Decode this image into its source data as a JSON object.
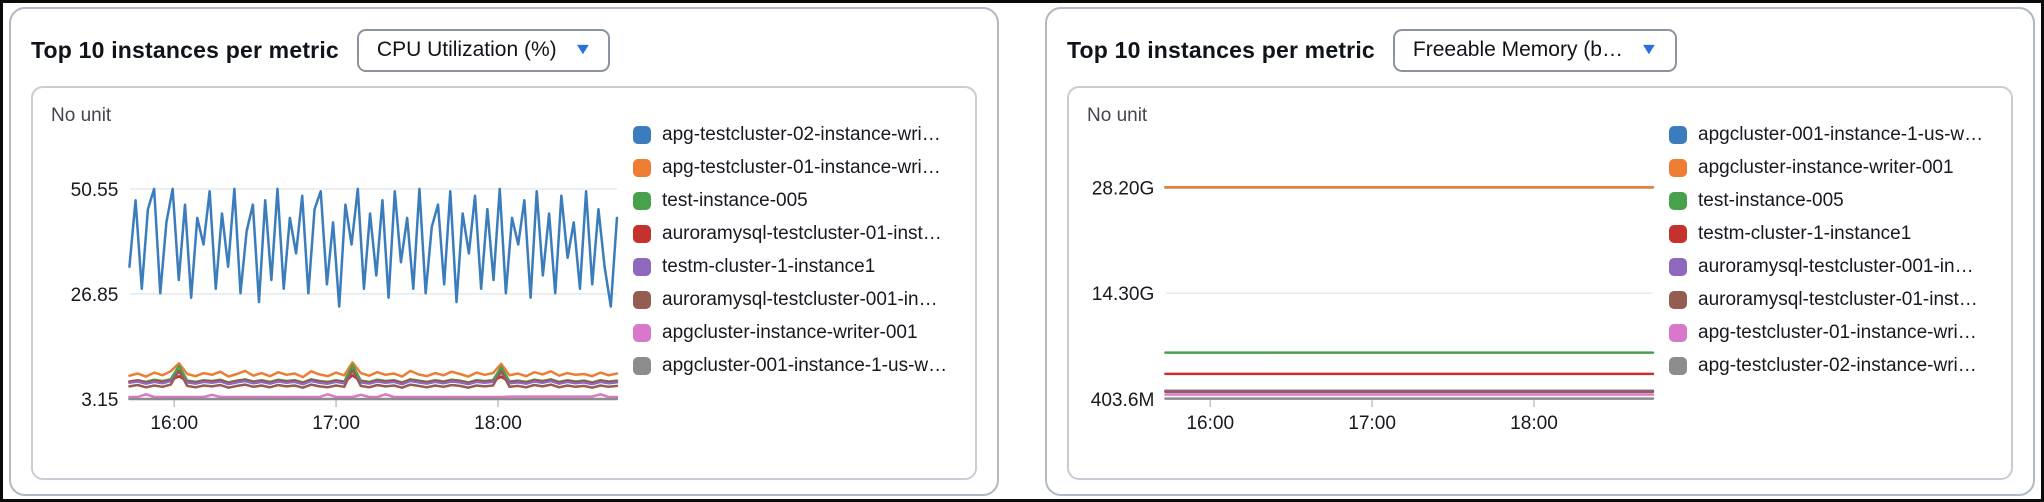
{
  "panels": [
    {
      "title": "Top 10 instances per metric",
      "metric_selector": {
        "value": "CPU Utilization (%)",
        "caret": "▼"
      },
      "chart": {
        "unit_label": "No unit"
      }
    },
    {
      "title": "Top 10 instances per metric",
      "metric_selector": {
        "value": "Freeable Memory (b…",
        "caret": "▼"
      },
      "chart": {
        "unit_label": "No unit"
      }
    }
  ],
  "chart_data": [
    {
      "type": "line",
      "title": "Top 10 instances per metric — CPU Utilization (%)",
      "unit": "No unit",
      "legend_position": "right",
      "grid": "horizontal",
      "ylim": [
        3.15,
        60
      ],
      "gridlines": [
        {
          "value": 50.55,
          "label": "50.55"
        },
        {
          "value": 26.85,
          "label": "26.85"
        },
        {
          "value": 3.15,
          "label": "3.15"
        }
      ],
      "xticks": [
        {
          "f": 0.092,
          "label": "16:00"
        },
        {
          "f": 0.424,
          "label": "17:00"
        },
        {
          "f": 0.756,
          "label": "18:00"
        }
      ],
      "series": [
        {
          "name": "apg-testcluster-02-instance-wri…",
          "color": "#3b7dbc",
          "values": [
            33,
            48,
            28,
            46,
            50.55,
            27,
            43,
            50.55,
            30,
            47,
            26,
            44,
            38,
            50,
            28,
            45,
            33,
            50.55,
            27,
            41,
            47,
            25,
            48,
            30,
            50.55,
            28,
            44,
            36,
            49,
            27,
            46,
            50,
            29,
            43,
            24,
            47,
            38,
            50.55,
            28,
            45,
            31,
            48,
            26,
            50,
            34,
            44,
            28,
            50.55,
            27,
            42,
            47,
            29,
            50,
            25,
            45,
            36,
            49,
            28,
            46,
            30,
            50.55,
            27,
            44,
            38,
            48,
            26,
            50,
            31,
            45,
            27,
            49,
            35,
            43,
            28,
            50,
            29,
            46,
            33,
            24,
            44
          ]
        },
        {
          "name": "apg-testcluster-01-instance-wri…",
          "color": "#ec7d33",
          "values": [
            8.4,
            8.9,
            8.2,
            9.1,
            8.5,
            9.4,
            11.2,
            8.8,
            8.3,
            9.0,
            8.6,
            9.3,
            8.2,
            8.8,
            9.5,
            8.4,
            9.0,
            8.3,
            9.2,
            8.6,
            8.9,
            8.1,
            9.4,
            8.7,
            8.3,
            9.1,
            8.5,
            11.4,
            9.0,
            8.4,
            9.2,
            8.6,
            8.9,
            8.2,
            9.5,
            8.7,
            8.3,
            9.0,
            8.5,
            9.3,
            8.8,
            8.2,
            9.1,
            8.6,
            9.0,
            11.1,
            8.5,
            8.9,
            8.3,
            9.2,
            8.7,
            9.4,
            8.4,
            9.0,
            8.6,
            8.8,
            8.3,
            9.1,
            8.5,
            8.9
          ]
        },
        {
          "name": "test-instance-005",
          "color": "#48a24c",
          "values": [
            7.1,
            7.4,
            7.0,
            7.5,
            7.2,
            7.6,
            10.6,
            7.3,
            7.0,
            7.4,
            7.2,
            7.5,
            6.9,
            7.3,
            7.6,
            7.1,
            7.4,
            7.0,
            7.5,
            7.2,
            7.4,
            6.9,
            7.6,
            7.2,
            7.0,
            7.4,
            7.1,
            10.8,
            7.3,
            7.0,
            7.5,
            7.2,
            7.4,
            6.9,
            7.6,
            7.3,
            7.0,
            7.4,
            7.1,
            7.5,
            7.3,
            6.9,
            7.4,
            7.2,
            7.4,
            10.4,
            7.1,
            7.3,
            7.0,
            7.5,
            7.2,
            7.6,
            7.0,
            7.4,
            7.1,
            7.3,
            6.9,
            7.4,
            7.1,
            7.3
          ]
        },
        {
          "name": "auroramysql-testcluster-01-inst…",
          "color": "#c5322d",
          "values": [
            7.0,
            7.3,
            6.8,
            7.2,
            6.9,
            7.4,
            8.3,
            7.1,
            6.8,
            7.2,
            7.0,
            7.3,
            6.7,
            7.1,
            7.4,
            6.9,
            7.2,
            6.8,
            7.3,
            7.0,
            7.2,
            6.7,
            7.4,
            7.0,
            6.8,
            7.2,
            6.9,
            8.5,
            7.1,
            6.8,
            7.3,
            7.0,
            7.2,
            6.7,
            7.4,
            7.1,
            6.8,
            7.2,
            6.9,
            7.3,
            7.1,
            6.7,
            7.2,
            7.0,
            7.2,
            8.2,
            6.9,
            7.1,
            6.8,
            7.3,
            7.0,
            7.4,
            6.8,
            7.2,
            6.9,
            7.1,
            6.7,
            7.2,
            6.9,
            7.1
          ]
        },
        {
          "name": "testm-cluster-1-instance1",
          "color": "#8d68bc",
          "values": [
            6.8,
            7.1,
            6.6,
            7.0,
            6.7,
            7.2,
            9.3,
            6.9,
            6.6,
            7.0,
            6.8,
            7.1,
            6.5,
            6.9,
            7.2,
            6.7,
            7.0,
            6.6,
            7.1,
            6.8,
            7.0,
            6.5,
            7.2,
            6.8,
            6.6,
            7.0,
            6.7,
            9.5,
            6.9,
            6.6,
            7.1,
            6.8,
            7.0,
            6.5,
            7.2,
            6.9,
            6.6,
            7.0,
            6.7,
            7.1,
            6.9,
            6.5,
            7.0,
            6.8,
            7.0,
            9.2,
            6.7,
            6.9,
            6.6,
            7.1,
            6.8,
            7.2,
            6.6,
            7.0,
            6.7,
            6.9,
            6.5,
            7.0,
            6.7,
            6.9
          ]
        },
        {
          "name": "auroramysql-testcluster-001-in…",
          "color": "#955d52",
          "values": [
            6.0,
            6.3,
            5.8,
            6.2,
            5.9,
            6.4,
            9.6,
            6.1,
            5.8,
            6.2,
            6.0,
            6.3,
            5.7,
            6.1,
            6.4,
            5.9,
            6.2,
            5.8,
            6.3,
            6.0,
            6.2,
            5.7,
            6.4,
            6.0,
            5.8,
            6.2,
            5.9,
            9.8,
            6.1,
            5.8,
            6.3,
            6.0,
            6.2,
            5.7,
            6.4,
            6.1,
            5.8,
            6.2,
            5.9,
            6.3,
            6.1,
            5.7,
            6.2,
            6.0,
            6.2,
            9.5,
            5.9,
            6.1,
            5.8,
            6.3,
            6.0,
            6.4,
            5.8,
            6.2,
            5.9,
            6.1,
            5.7,
            6.2,
            5.9,
            6.1
          ]
        },
        {
          "name": "apgcluster-instance-writer-001",
          "color": "#d878c8",
          "values": [
            3.6,
            3.6,
            4.2,
            3.6,
            3.6,
            3.6,
            3.6,
            3.6,
            3.6,
            3.6,
            4.1,
            3.6,
            3.6,
            3.6,
            3.6,
            3.6,
            3.6,
            3.6,
            3.6,
            3.6,
            3.6,
            3.6,
            3.6,
            3.6,
            4.2,
            3.6,
            3.6,
            3.6,
            4.1,
            3.6,
            3.6,
            4.2,
            3.6,
            3.6,
            3.6,
            3.6,
            3.6,
            3.6,
            3.6,
            3.6,
            3.6,
            3.6,
            3.6,
            3.6,
            3.6,
            3.6,
            3.7,
            3.7,
            3.7,
            3.7,
            3.7,
            3.7,
            3.7,
            3.7,
            3.7,
            3.7,
            3.7,
            4.2,
            3.6,
            3.6
          ]
        },
        {
          "name": "apgcluster-001-instance-1-us-w…",
          "color": "#8c8c8c",
          "values": [
            3.15,
            3.15
          ]
        }
      ]
    },
    {
      "type": "line",
      "title": "Top 10 instances per metric — Freeable Memory (bytes)",
      "unit": "No unit",
      "legend_position": "right",
      "grid": "horizontal",
      "ylim": [
        0.4036,
        33.5
      ],
      "gridlines": [
        {
          "value": 28.2,
          "label": "28.20G"
        },
        {
          "value": 14.3,
          "label": "14.30G"
        },
        {
          "value": 0.4036,
          "label": "403.6M"
        }
      ],
      "xticks": [
        {
          "f": 0.092,
          "label": "16:00"
        },
        {
          "f": 0.424,
          "label": "17:00"
        },
        {
          "f": 0.756,
          "label": "18:00"
        }
      ],
      "series": [
        {
          "name": "apgcluster-001-instance-1-us-w…",
          "color": "#3b7dbc",
          "values": [
            28.2,
            28.2
          ]
        },
        {
          "name": "apgcluster-instance-writer-001",
          "color": "#ec7d33",
          "values": [
            28.2,
            28.2
          ]
        },
        {
          "name": "test-instance-005",
          "color": "#48a24c",
          "values": [
            6.5,
            6.5
          ]
        },
        {
          "name": "testm-cluster-1-instance1",
          "color": "#c5322d",
          "values": [
            3.7,
            3.7
          ]
        },
        {
          "name": "auroramysql-testcluster-001-in…",
          "color": "#8d68bc",
          "values": [
            1.5,
            1.5
          ]
        },
        {
          "name": "auroramysql-testcluster-01-inst…",
          "color": "#955d52",
          "values": [
            1.35,
            1.35
          ]
        },
        {
          "name": "apg-testcluster-01-instance-wri…",
          "color": "#d878c8",
          "values": [
            1.0,
            1.0
          ]
        },
        {
          "name": "apg-testcluster-02-instance-wri…",
          "color": "#8c8c8c",
          "values": [
            0.45,
            0.45
          ]
        }
      ]
    }
  ]
}
